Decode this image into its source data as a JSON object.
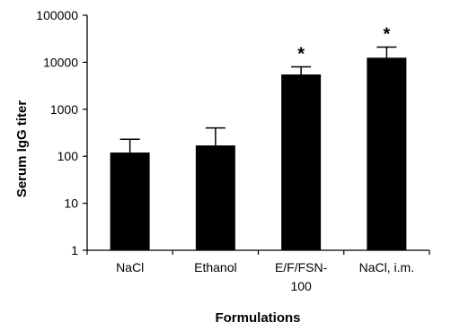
{
  "chart_data": {
    "type": "bar",
    "title": "",
    "xlabel": "Formulations",
    "ylabel": "Serum IgG titer",
    "yscale": "log",
    "ylim": [
      1,
      100000
    ],
    "yticks": [
      "1",
      "10",
      "100",
      "1000",
      "10000",
      "100000"
    ],
    "categories": [
      [
        "NaCl"
      ],
      [
        "Ethanol"
      ],
      [
        "E/F/FSN-",
        "100"
      ],
      [
        "NaCl, i.m."
      ]
    ],
    "values": [
      120,
      170,
      5500,
      12500
    ],
    "error_upper": [
      230,
      400,
      8000,
      21000
    ],
    "annotations": [
      "",
      "",
      "*",
      "*"
    ],
    "grid": false,
    "legend": "none",
    "colors": {
      "bar": "#000000",
      "axis": "#000000",
      "background": "#ffffff"
    }
  }
}
